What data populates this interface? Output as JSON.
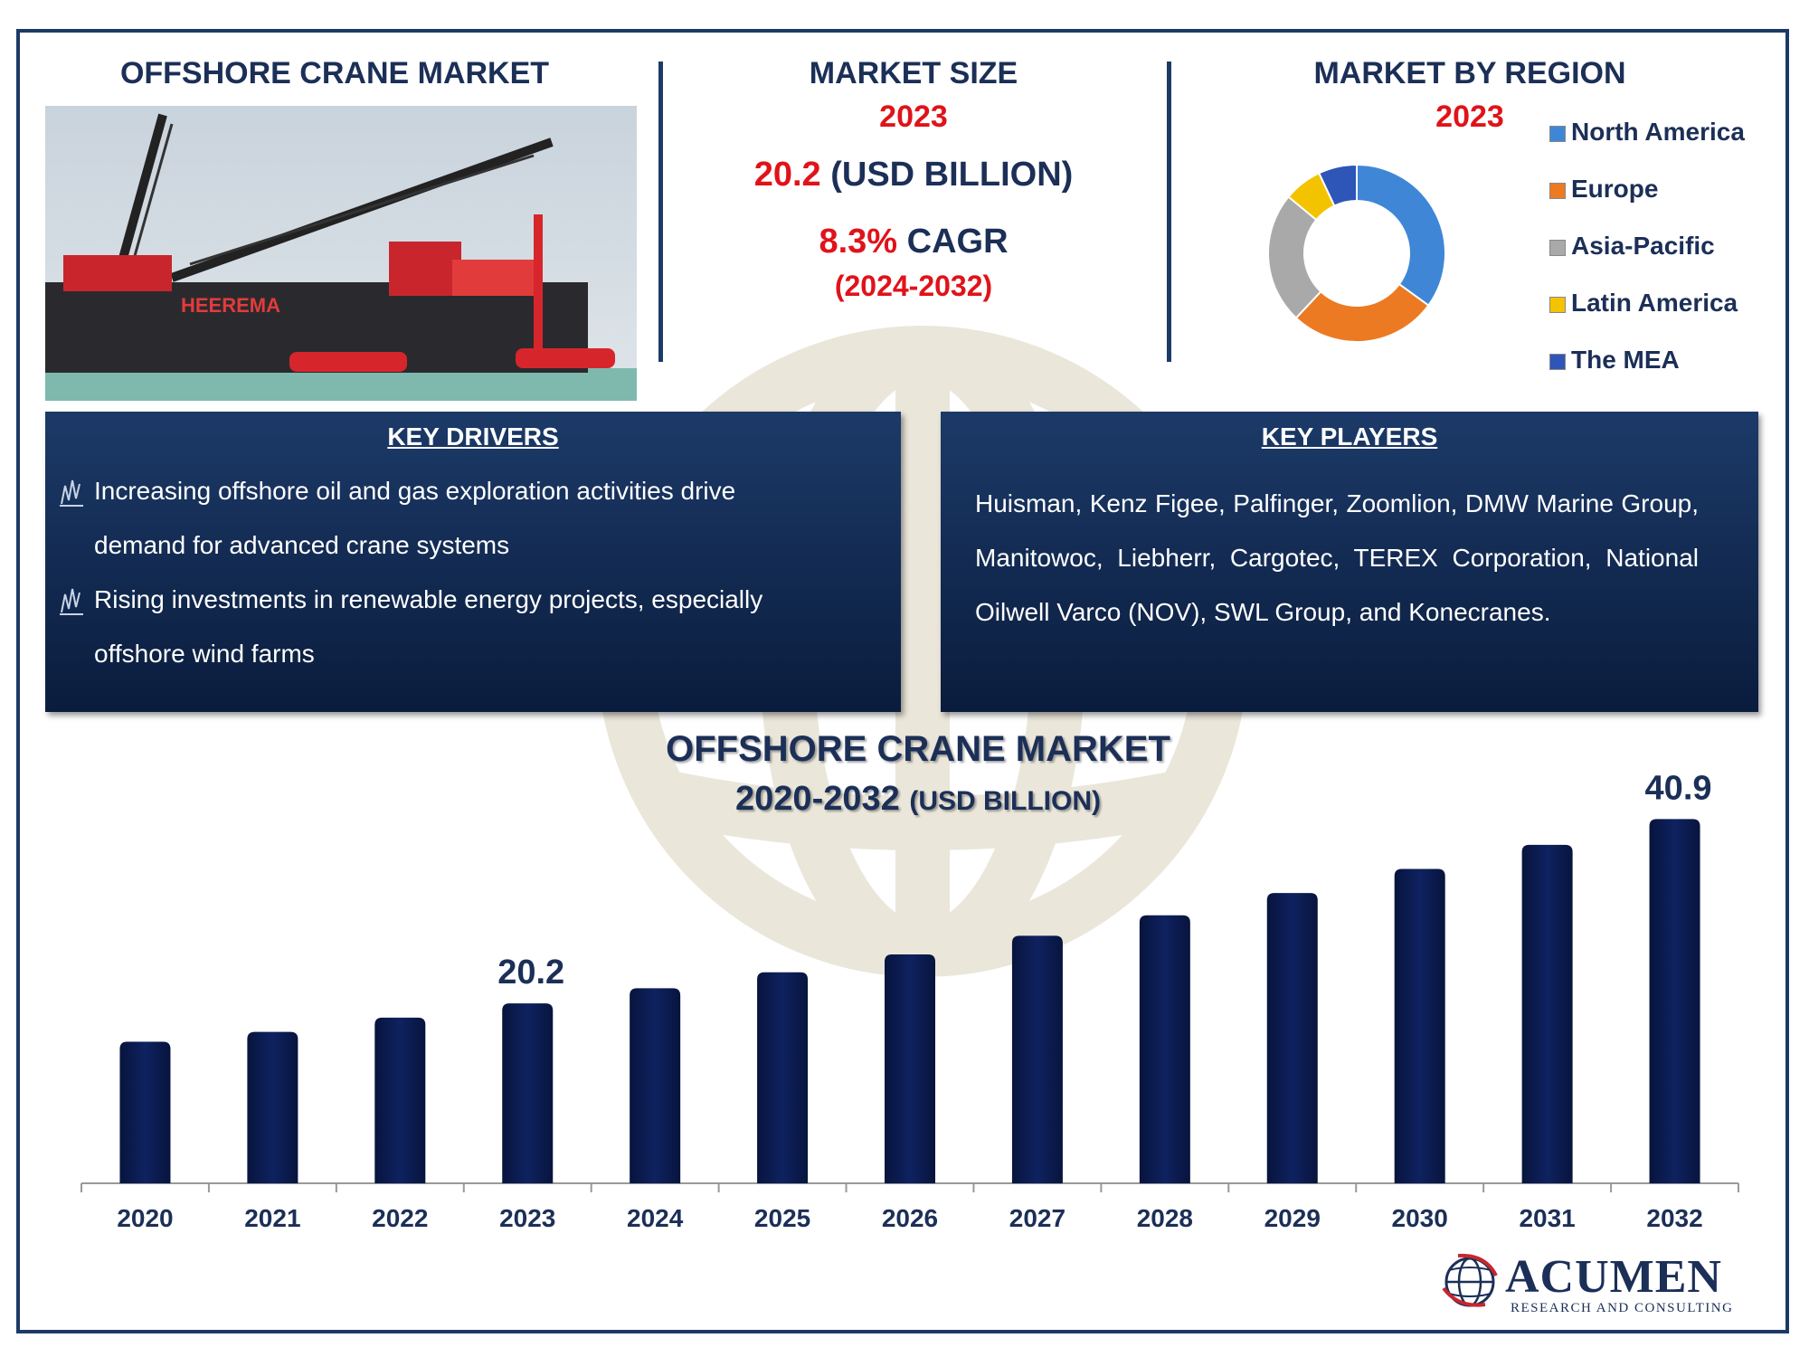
{
  "header": {
    "left_title": "OFFSHORE CRANE MARKET",
    "size_title": "MARKET SIZE",
    "size_year": "2023",
    "size_value": "20.2",
    "size_unit": "(USD BILLION)",
    "cagr_value": "8.3%",
    "cagr_label": "CAGR",
    "cagr_period": "(2024-2032)",
    "region_title": "MARKET BY REGION",
    "region_year": "2023"
  },
  "photo": {
    "ship_name": "HEEREMA"
  },
  "region_donut": {
    "items": [
      {
        "label": "North America",
        "share": 35,
        "color": "#3f87d6"
      },
      {
        "label": "Europe",
        "share": 27,
        "color": "#ec7a22"
      },
      {
        "label": "Asia-Pacific",
        "share": 24,
        "color": "#a9a9a9"
      },
      {
        "label": "Latin America",
        "share": 7,
        "color": "#f4c300"
      },
      {
        "label": "The MEA",
        "share": 7,
        "color": "#2e56b8"
      }
    ]
  },
  "key_drivers": {
    "title": "KEY DRIVERS",
    "items": [
      {
        "line1": "Increasing offshore oil and gas exploration activities drive",
        "line2": "demand for advanced crane systems"
      },
      {
        "line1": "Rising investments in renewable energy projects, especially",
        "line2": "offshore wind farms"
      }
    ]
  },
  "key_players": {
    "title": "KEY PLAYERS",
    "text": "Huisman, Kenz Figee, Palfinger, Zoomlion, DMW Marine Group, Manitowoc, Liebherr, Cargotec, TEREX Corporation, National Oilwell Varco (NOV), SWL Group, and Konecranes."
  },
  "chart_data": {
    "type": "bar",
    "title": "OFFSHORE CRANE MARKET",
    "subtitle_years": "2020-2032",
    "subtitle_unit": "(USD BILLION)",
    "categories": [
      "2020",
      "2021",
      "2022",
      "2023",
      "2024",
      "2025",
      "2026",
      "2027",
      "2028",
      "2029",
      "2030",
      "2031",
      "2032"
    ],
    "values": [
      15.9,
      17.0,
      18.6,
      20.2,
      21.9,
      23.7,
      25.7,
      27.8,
      30.1,
      32.6,
      35.3,
      38.0,
      40.9
    ],
    "data_labels": {
      "2023": "20.2",
      "2032": "40.9"
    },
    "bar_color": "#0f2260",
    "ylim": [
      0,
      45
    ],
    "grid": false
  },
  "brand": {
    "name": "ACUMEN",
    "tagline": "RESEARCH AND CONSULTING"
  }
}
